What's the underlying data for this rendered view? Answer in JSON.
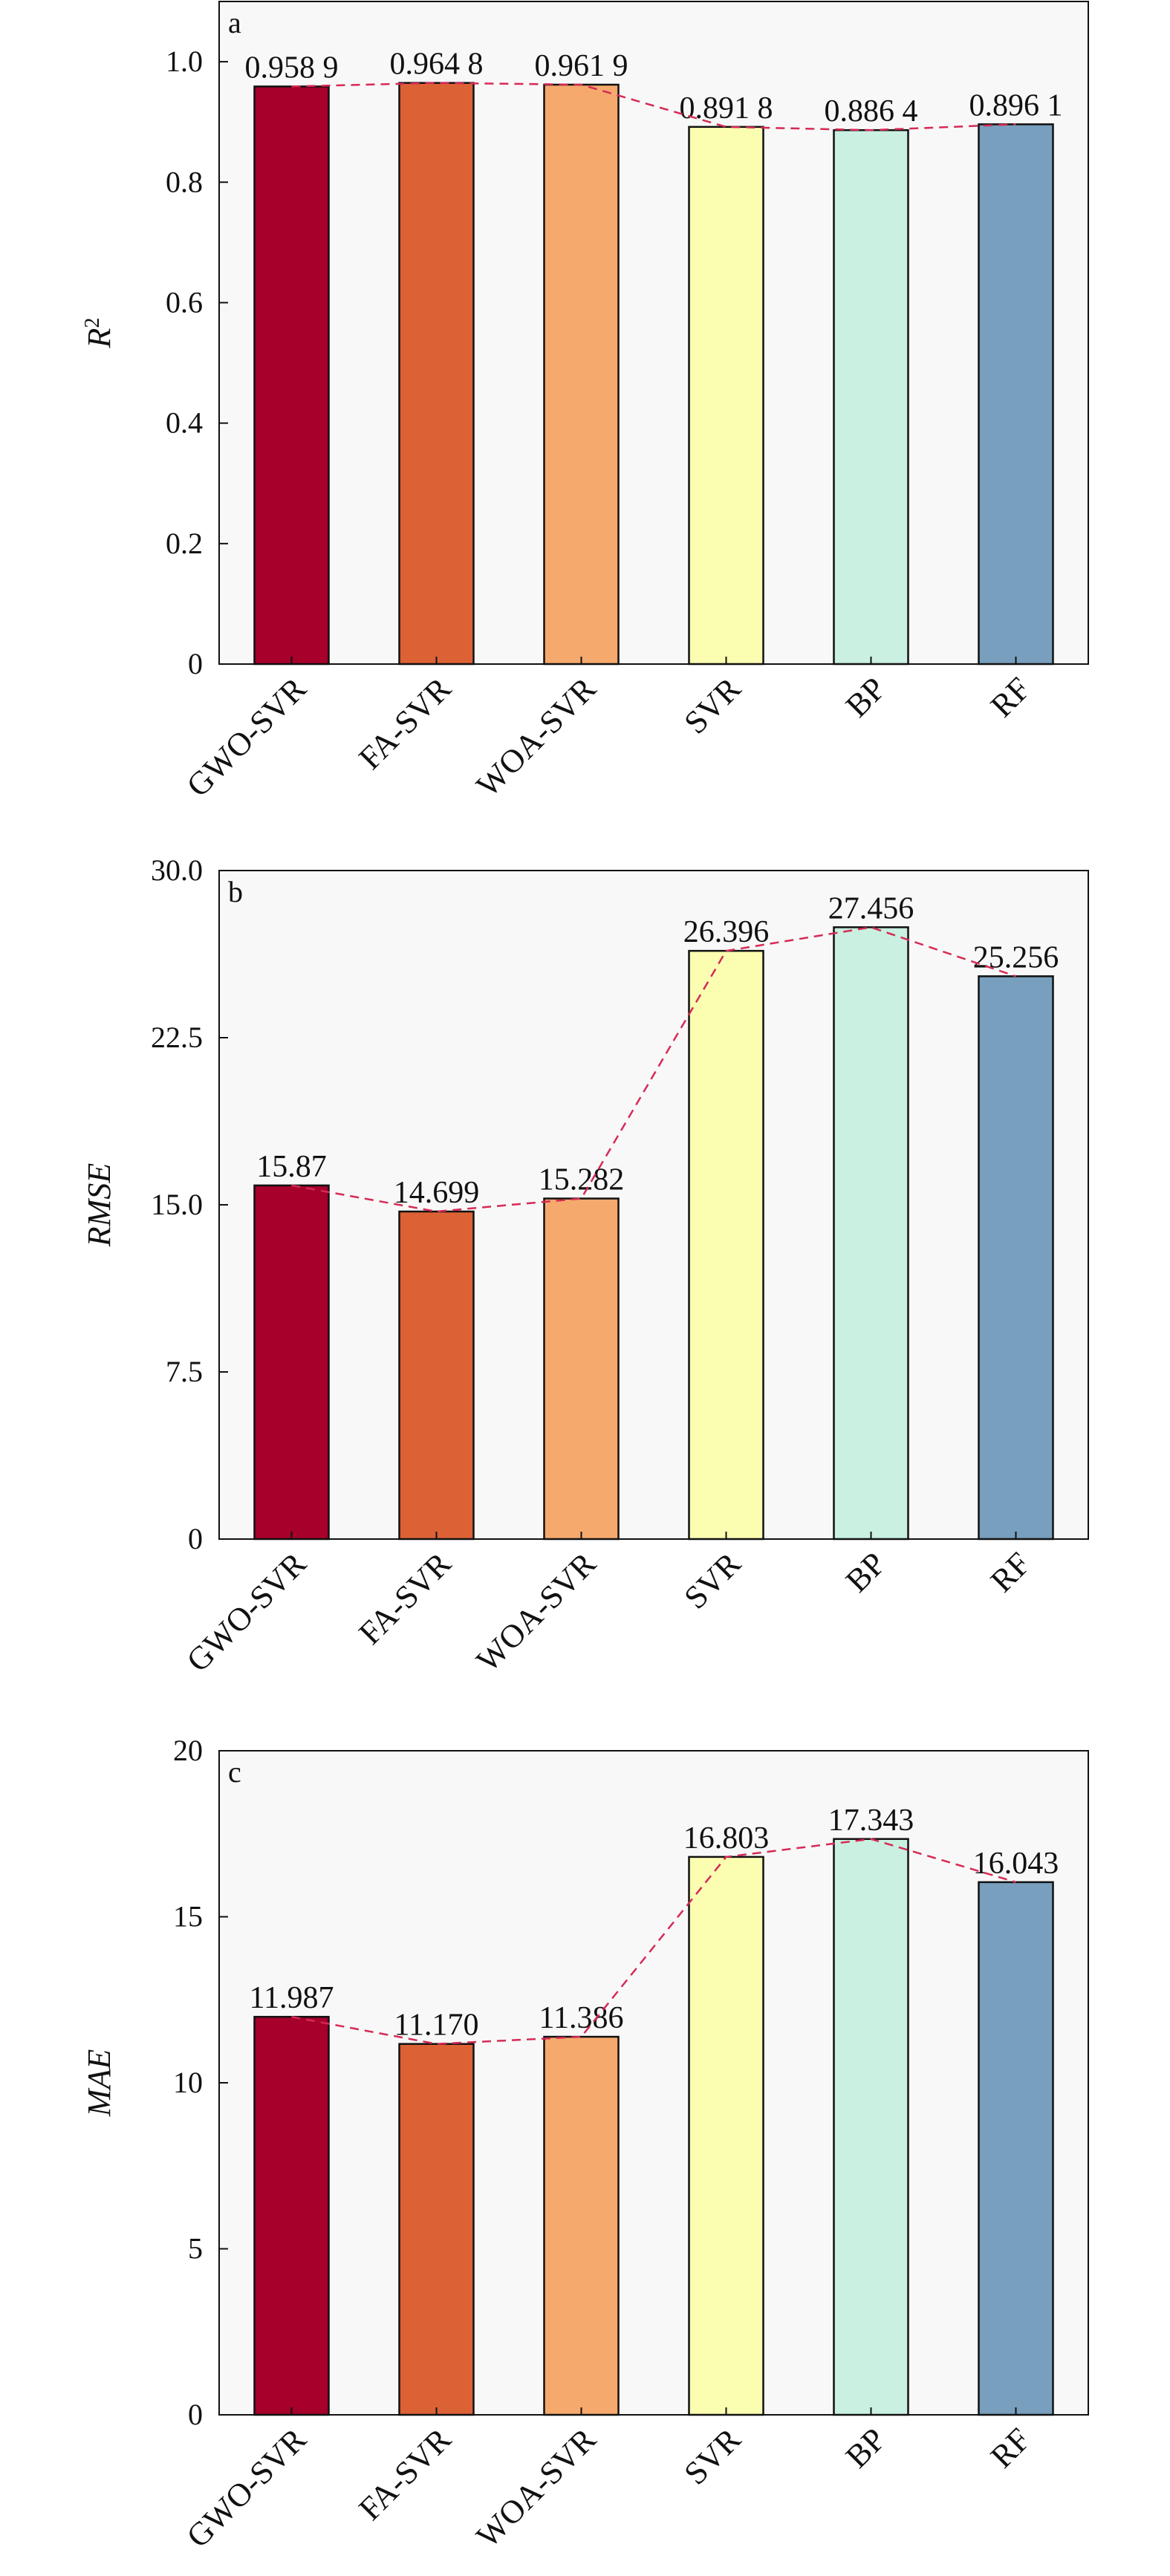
{
  "chart_data": [
    {
      "panel": "a",
      "type": "bar",
      "title": "",
      "xlabel": "",
      "ylabel": "R",
      "ylabel_superscript": "2",
      "categories": [
        "GWO-SVR",
        "FA-SVR",
        "WOA-SVR",
        "SVR",
        "BP",
        "RF"
      ],
      "values": [
        0.9589,
        0.9648,
        0.9619,
        0.8918,
        0.8864,
        0.8961
      ],
      "value_labels": [
        "0.958 9",
        "0.964 8",
        "0.961 9",
        "0.891 8",
        "0.886 4",
        "0.896 1"
      ],
      "yticks": [
        "0",
        "0.2",
        "0.4",
        "0.6",
        "0.8",
        "1.0"
      ],
      "ytick_values": [
        0,
        0.2,
        0.4,
        0.6,
        0.8,
        1.0
      ],
      "ylim": [
        0,
        1.1
      ],
      "trend_line": "dashed",
      "grid": false
    },
    {
      "panel": "b",
      "type": "bar",
      "title": "",
      "xlabel": "",
      "ylabel": "RMSE",
      "ylabel_superscript": "",
      "categories": [
        "GWO-SVR",
        "FA-SVR",
        "WOA-SVR",
        "SVR",
        "BP",
        "RF"
      ],
      "values": [
        15.87,
        14.699,
        15.282,
        26.396,
        27.456,
        25.256
      ],
      "value_labels": [
        "15.87",
        "14.699",
        "15.282",
        "26.396",
        "27.456",
        "25.256"
      ],
      "yticks": [
        "0",
        "7.5",
        "15.0",
        "22.5",
        "30.0"
      ],
      "ytick_values": [
        0,
        7.5,
        15,
        22.5,
        30
      ],
      "ylim": [
        0,
        30
      ],
      "trend_line": "dashed",
      "grid": false
    },
    {
      "panel": "c",
      "type": "bar",
      "title": "",
      "xlabel": "",
      "ylabel": "MAE",
      "ylabel_superscript": "",
      "categories": [
        "GWO-SVR",
        "FA-SVR",
        "WOA-SVR",
        "SVR",
        "BP",
        "RF"
      ],
      "values": [
        11.987,
        11.17,
        11.386,
        16.803,
        17.343,
        16.043
      ],
      "value_labels": [
        "11.987",
        "11.170",
        "11.386",
        "16.803",
        "17.343",
        "16.043"
      ],
      "yticks": [
        "0",
        "5",
        "10",
        "15",
        "20"
      ],
      "ytick_values": [
        0,
        5,
        10,
        15,
        20
      ],
      "ylim": [
        0,
        20
      ],
      "trend_line": "dashed",
      "grid": false
    }
  ],
  "colors": {
    "bars": [
      "#a6002b",
      "#dc6236",
      "#f6a96c",
      "#fbfdb1",
      "#c9f0e1",
      "#789fbd"
    ],
    "trend_line": "#d62a55",
    "plot_background": "#f8f8f8",
    "axis": "#111111"
  }
}
